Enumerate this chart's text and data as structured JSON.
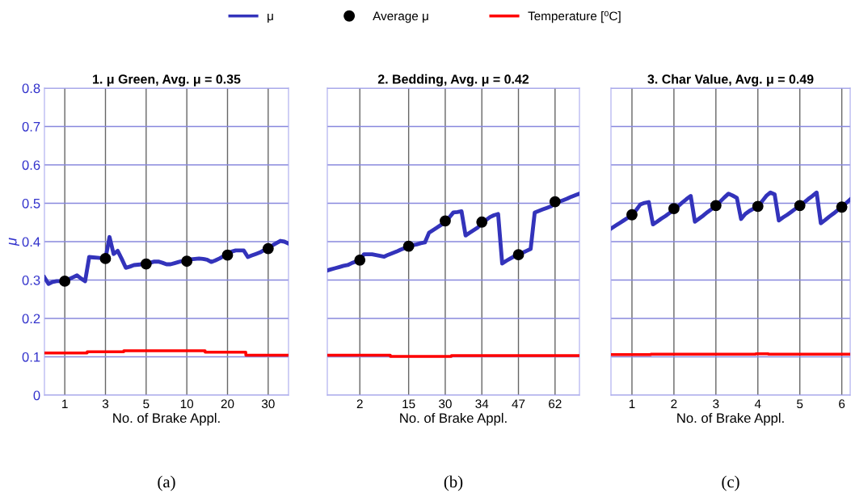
{
  "chart_data": [
    {
      "type": "line",
      "title": "1. μ Green, Avg. μ = 0.35",
      "xlabel": "No. of Brake Appl.",
      "ylabel": "μ",
      "ylim": [
        0,
        0.8
      ],
      "categories": [
        null,
        null,
        null,
        null,
        null,
        "1",
        null,
        null,
        null,
        null,
        null,
        null,
        null,
        null,
        null,
        "3",
        null,
        null,
        null,
        null,
        null,
        null,
        null,
        null,
        null,
        "5",
        null,
        null,
        null,
        null,
        null,
        null,
        null,
        null,
        null,
        "10",
        null,
        null,
        null,
        null,
        null,
        null,
        null,
        null,
        null,
        "20",
        null,
        null,
        null,
        null,
        null,
        null,
        null,
        null,
        null,
        "30",
        null,
        null,
        null,
        null,
        null
      ],
      "yticks": [
        0,
        0.1,
        0.2,
        0.3,
        0.4,
        0.5,
        0.6,
        0.7,
        0.8
      ],
      "grid": true,
      "legend": "top",
      "annotations": [
        "(a)"
      ],
      "series": [
        {
          "name": "μ",
          "color": "#3333bb",
          "values": [
            0.307,
            0.29,
            0.295,
            0.297,
            0.297,
            0.297,
            0.302,
            0.307,
            0.312,
            0.304,
            0.297,
            0.36,
            0.359,
            0.358,
            0.357,
            0.356,
            0.412,
            0.368,
            0.376,
            0.355,
            0.332,
            0.335,
            0.339,
            0.34,
            0.341,
            0.342,
            0.345,
            0.348,
            0.348,
            0.345,
            0.341,
            0.341,
            0.344,
            0.347,
            0.35,
            0.353,
            0.354,
            0.355,
            0.356,
            0.355,
            0.353,
            0.347,
            0.351,
            0.356,
            0.362,
            0.367,
            0.374,
            0.377,
            0.377,
            0.377,
            0.36,
            0.364,
            0.368,
            0.372,
            0.378,
            0.384,
            0.39,
            0.396,
            0.402,
            0.4,
            0.395
          ]
        },
        {
          "name": "Average μ",
          "type": "scatter",
          "color": "#000000",
          "values": [
            null,
            null,
            null,
            null,
            null,
            0.297,
            null,
            null,
            null,
            null,
            null,
            null,
            null,
            null,
            null,
            0.356,
            null,
            null,
            null,
            null,
            null,
            null,
            null,
            null,
            null,
            0.342,
            null,
            null,
            null,
            null,
            null,
            null,
            null,
            null,
            null,
            0.349,
            null,
            null,
            null,
            null,
            null,
            null,
            null,
            null,
            null,
            0.365,
            null,
            null,
            null,
            null,
            null,
            null,
            null,
            null,
            null,
            0.382,
            null,
            null,
            null,
            null,
            null
          ]
        },
        {
          "name": "Temperature [⁰C]",
          "type": "step",
          "color": "#ff0000",
          "values": [
            0.11,
            0.11,
            0.11,
            0.11,
            0.11,
            0.11,
            0.11,
            0.11,
            0.11,
            0.11,
            0.11,
            0.113,
            0.113,
            0.113,
            0.113,
            0.113,
            0.113,
            0.113,
            0.113,
            0.113,
            0.116,
            0.116,
            0.116,
            0.116,
            0.116,
            0.116,
            0.116,
            0.116,
            0.116,
            0.116,
            0.116,
            0.116,
            0.116,
            0.116,
            0.116,
            0.116,
            0.116,
            0.116,
            0.116,
            0.116,
            0.112,
            0.112,
            0.112,
            0.112,
            0.112,
            0.112,
            0.112,
            0.112,
            0.112,
            0.112,
            0.104,
            0.104,
            0.104,
            0.104,
            0.104,
            0.104,
            0.104,
            0.104,
            0.104,
            0.104,
            0.104
          ]
        }
      ]
    },
    {
      "type": "line",
      "title": "2. Bedding, Avg. μ = 0.42",
      "xlabel": "No. of Brake Appl.",
      "ylim": [
        0,
        0.8
      ],
      "categories": [
        null,
        null,
        null,
        null,
        null,
        null,
        null,
        null,
        "2",
        null,
        null,
        null,
        null,
        null,
        null,
        null,
        null,
        null,
        null,
        null,
        "15",
        null,
        null,
        null,
        null,
        null,
        null,
        null,
        null,
        "30",
        null,
        null,
        null,
        null,
        null,
        null,
        null,
        null,
        "34",
        null,
        null,
        null,
        null,
        null,
        null,
        null,
        null,
        "47",
        null,
        null,
        null,
        null,
        null,
        null,
        null,
        null,
        "62",
        null,
        null,
        null,
        null,
        null,
        null
      ],
      "yticks": [
        0,
        0.1,
        0.2,
        0.3,
        0.4,
        0.5,
        0.6,
        0.7,
        0.8
      ],
      "tick_labels": "x",
      "grid": true,
      "annotations": [
        "(b)"
      ],
      "series": [
        {
          "color": "#3333bb",
          "values": [
            0.325,
            0.328,
            0.331,
            0.334,
            0.337,
            0.339,
            0.344,
            0.348,
            0.352,
            0.367,
            0.367,
            0.367,
            0.365,
            0.363,
            0.361,
            0.366,
            0.37,
            0.374,
            0.379,
            0.383,
            0.388,
            0.391,
            0.393,
            0.396,
            0.398,
            0.423,
            0.43,
            0.437,
            0.444,
            0.451,
            0.463,
            0.476,
            0.477,
            0.479,
            0.416,
            0.423,
            0.43,
            0.437,
            0.448,
            0.456,
            0.464,
            0.469,
            0.472,
            0.343,
            0.35,
            0.356,
            0.362,
            0.366,
            0.371,
            0.376,
            0.381,
            0.476,
            0.48,
            0.484,
            0.488,
            0.492,
            0.5,
            0.504,
            0.508,
            0.512,
            0.517,
            0.521,
            0.525
          ]
        },
        {
          "type": "scatter",
          "color": "#000000",
          "values": [
            null,
            null,
            null,
            null,
            null,
            null,
            null,
            null,
            0.352,
            null,
            null,
            null,
            null,
            null,
            null,
            null,
            null,
            null,
            null,
            null,
            0.388,
            null,
            null,
            null,
            null,
            null,
            null,
            null,
            null,
            0.454,
            null,
            null,
            null,
            null,
            null,
            null,
            null,
            null,
            0.451,
            null,
            null,
            null,
            null,
            null,
            null,
            null,
            null,
            0.366,
            null,
            null,
            null,
            null,
            null,
            null,
            null,
            null,
            0.504,
            null,
            null,
            null,
            null,
            null,
            null
          ]
        },
        {
          "type": "step",
          "color": "#ff0000",
          "values": [
            0.104,
            0.104,
            0.104,
            0.104,
            0.104,
            0.104,
            0.104,
            0.104,
            0.104,
            0.104,
            0.104,
            0.104,
            0.104,
            0.104,
            0.104,
            0.104,
            0.101,
            0.101,
            0.101,
            0.101,
            0.101,
            0.101,
            0.101,
            0.101,
            0.101,
            0.101,
            0.101,
            0.101,
            0.101,
            0.101,
            0.101,
            0.103,
            0.103,
            0.103,
            0.103,
            0.103,
            0.103,
            0.103,
            0.103,
            0.103,
            0.103,
            0.103,
            0.103,
            0.103,
            0.103,
            0.103,
            0.103,
            0.103,
            0.103,
            0.103,
            0.103,
            0.103,
            0.103,
            0.103,
            0.103,
            0.103,
            0.103,
            0.103,
            0.103,
            0.103,
            0.103,
            0.103,
            0.103
          ]
        }
      ]
    },
    {
      "type": "line",
      "title": "3. Char Value, Avg. μ = 0.49",
      "xlabel": "No. of Brake Appl.",
      "ylim": [
        0,
        0.8
      ],
      "categories": [
        null,
        null,
        null,
        null,
        null,
        "1",
        null,
        null,
        null,
        null,
        null,
        null,
        null,
        null,
        null,
        "2",
        null,
        null,
        null,
        null,
        null,
        null,
        null,
        null,
        null,
        "3",
        null,
        null,
        null,
        null,
        null,
        null,
        null,
        null,
        null,
        "4",
        null,
        null,
        null,
        null,
        null,
        null,
        null,
        null,
        null,
        "5",
        null,
        null,
        null,
        null,
        null,
        null,
        null,
        null,
        null,
        "6",
        null,
        null
      ],
      "yticks": [
        0,
        0.1,
        0.2,
        0.3,
        0.4,
        0.5,
        0.6,
        0.7,
        0.8
      ],
      "tick_labels": "x",
      "grid": true,
      "annotations": [
        "(c)"
      ],
      "series": [
        {
          "color": "#3333bb",
          "values": [
            0.434,
            0.441,
            0.448,
            0.455,
            0.462,
            0.469,
            0.482,
            0.497,
            0.501,
            0.503,
            0.445,
            0.452,
            0.46,
            0.467,
            0.475,
            0.483,
            0.492,
            0.502,
            0.511,
            0.519,
            0.452,
            0.46,
            0.468,
            0.477,
            0.485,
            0.493,
            0.504,
            0.515,
            0.525,
            0.52,
            0.514,
            0.459,
            0.472,
            0.48,
            0.486,
            0.492,
            0.505,
            0.519,
            0.528,
            0.523,
            0.455,
            0.463,
            0.47,
            0.478,
            0.486,
            0.493,
            0.502,
            0.511,
            0.519,
            0.528,
            0.448,
            0.456,
            0.465,
            0.473,
            0.482,
            0.49,
            0.5,
            0.51
          ]
        },
        {
          "type": "scatter",
          "color": "#000000",
          "values": [
            null,
            null,
            null,
            null,
            null,
            0.47,
            null,
            null,
            null,
            null,
            null,
            null,
            null,
            null,
            null,
            0.486,
            null,
            null,
            null,
            null,
            null,
            null,
            null,
            null,
            null,
            0.494,
            null,
            null,
            null,
            null,
            null,
            null,
            null,
            null,
            null,
            0.492,
            null,
            null,
            null,
            null,
            null,
            null,
            null,
            null,
            null,
            0.494,
            null,
            null,
            null,
            null,
            null,
            null,
            null,
            null,
            null,
            0.49,
            null,
            null
          ]
        },
        {
          "type": "step",
          "color": "#ff0000",
          "values": [
            0.106,
            0.106,
            0.106,
            0.106,
            0.106,
            0.106,
            0.106,
            0.106,
            0.106,
            0.106,
            0.107,
            0.107,
            0.107,
            0.107,
            0.107,
            0.107,
            0.107,
            0.107,
            0.107,
            0.107,
            0.107,
            0.107,
            0.107,
            0.107,
            0.107,
            0.107,
            0.107,
            0.107,
            0.107,
            0.107,
            0.107,
            0.107,
            0.107,
            0.107,
            0.107,
            0.108,
            0.108,
            0.108,
            0.107,
            0.107,
            0.107,
            0.107,
            0.107,
            0.107,
            0.107,
            0.107,
            0.107,
            0.107,
            0.107,
            0.107,
            0.107,
            0.107,
            0.107,
            0.107,
            0.107,
            0.107,
            0.107,
            0.107
          ]
        }
      ]
    }
  ]
}
